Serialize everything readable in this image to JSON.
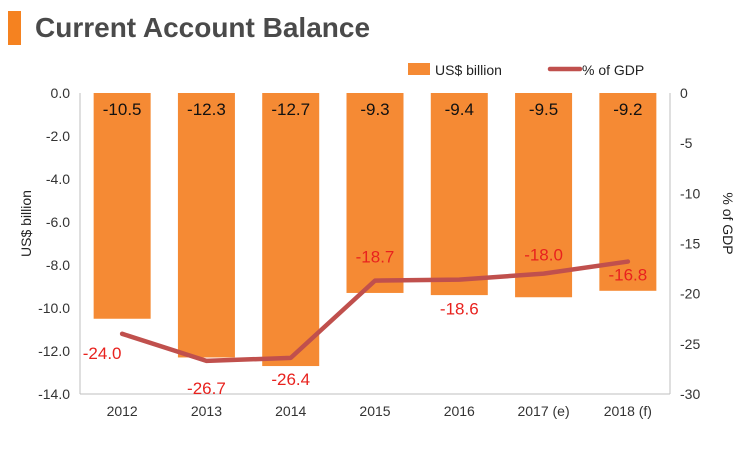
{
  "title": "Current Account Balance",
  "colors": {
    "accent": "#F58220",
    "bar": "#F58A34",
    "line": "#C0504D",
    "line_label": "#E8221E",
    "text": "#222222",
    "axis_text": "#333333"
  },
  "chart_data": {
    "type": "bar",
    "categories": [
      "2012",
      "2013",
      "2014",
      "2015",
      "2016",
      "2017 (e)",
      "2018 (f)"
    ],
    "series": [
      {
        "name": "US$ billion",
        "type": "bar",
        "axis": "left",
        "values": [
          -10.5,
          -12.3,
          -12.7,
          -9.3,
          -9.4,
          -9.5,
          -9.2
        ],
        "labels": [
          "-10.5",
          "-12.3",
          "-12.7",
          "-9.3",
          "-9.4",
          "-9.5",
          "-9.2"
        ]
      },
      {
        "name": "% of GDP",
        "type": "line",
        "axis": "right",
        "values": [
          -24.0,
          -26.7,
          -26.4,
          -18.7,
          -18.6,
          -18.0,
          -16.8
        ],
        "labels": [
          "-24.0",
          "-26.7",
          "-26.4",
          "-18.7",
          "-18.6",
          "-18.0",
          "-16.8"
        ]
      }
    ],
    "ylabel": "US$ billion",
    "y2label": "% of GDP",
    "ylim": [
      -14,
      0
    ],
    "y2lim": [
      -30,
      0
    ],
    "yticks": [
      "0.0",
      "-2.0",
      "-4.0",
      "-6.0",
      "-8.0",
      "-10.0",
      "-12.0",
      "-14.0"
    ],
    "y2ticks": [
      "0",
      "-5",
      "-10",
      "-15",
      "-20",
      "-25",
      "-30"
    ],
    "legend": "top-right",
    "grid": false
  }
}
